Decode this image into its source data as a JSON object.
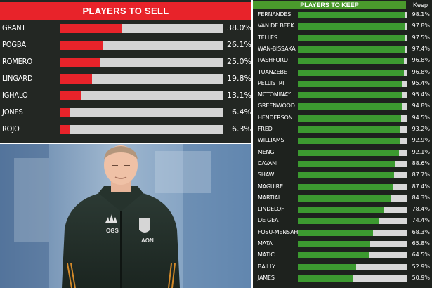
{
  "sell_chart": {
    "title": "PLAYERS TO SELL",
    "chart_data": {
      "type": "bar",
      "categories": [
        "GRANT",
        "POGBA",
        "ROMERO",
        "LINGARD",
        "IGHALO",
        "JONES",
        "ROJO"
      ],
      "values": [
        38.0,
        26.1,
        25.0,
        19.8,
        13.1,
        6.4,
        6.3
      ],
      "labels": [
        "38.0%",
        "26.1%",
        "25.0%",
        "19.8%",
        "13.1%",
        "6.4%",
        "6.3%"
      ],
      "ylim": [
        0,
        100
      ],
      "color": "#e8232a"
    }
  },
  "keep_chart": {
    "title": "PLAYERS TO KEEP",
    "column_label": "Keep",
    "chart_data": {
      "type": "bar",
      "categories": [
        "FERNANDES",
        "VAN DE BEEK",
        "TELLES",
        "WAN-BISSAKA",
        "RASHFORD",
        "TUANZEBE",
        "PELLISTRI",
        "MCTOMINAY",
        "GREENWOOD",
        "HENDERSON",
        "FRED",
        "WILLIAMS",
        "MENGI",
        "CAVANI",
        "SHAW",
        "MAGUIRE",
        "MARTIAL",
        "LINDELOF",
        "DE GEA",
        "FOSU-MENSAH",
        "MATA",
        "MATIC",
        "BAILLY",
        "JAMES"
      ],
      "values": [
        98.1,
        97.8,
        97.5,
        97.4,
        96.8,
        96.8,
        95.4,
        95.4,
        94.8,
        94.5,
        93.2,
        92.9,
        92.1,
        88.6,
        87.7,
        87.4,
        84.3,
        78.4,
        74.4,
        68.3,
        65.8,
        64.5,
        52.9,
        50.9
      ],
      "labels": [
        "98.1%",
        "97.8%",
        "97.5%",
        "97.4%",
        "96.8%",
        "96.8%",
        "95.4%",
        "95.4%",
        "94.8%",
        "94.5%",
        "93.2%",
        "92.9%",
        "92.1%",
        "88.6%",
        "87.7%",
        "87.4%",
        "84.3%",
        "78.4%",
        "74.4%",
        "68.3%",
        "65.8%",
        "64.5%",
        "52.9%",
        "50.9%"
      ],
      "ylim": [
        0,
        100
      ],
      "color": "#3c9a30"
    }
  },
  "photo": {
    "badge_text": "OGS",
    "sponsor_text": "AON"
  }
}
